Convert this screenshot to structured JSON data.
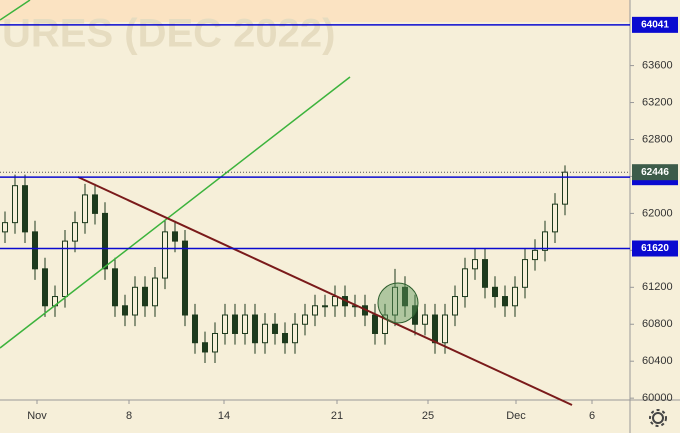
{
  "chart_data": {
    "type": "candlestick",
    "watermark": "URES (DEC 2022)",
    "color": "#1d3a1d",
    "open": [
      61800,
      61900,
      62300,
      61800,
      61400,
      61000,
      61100,
      61700,
      61900,
      62200,
      62000,
      61400,
      61000,
      60900,
      61200,
      61000,
      61300,
      61800,
      61700,
      60900,
      60600,
      60500,
      60700,
      60900,
      60700,
      60900,
      60600,
      60800,
      60700,
      60600,
      60800,
      60900,
      61000,
      61000,
      61100,
      61000,
      61000,
      60900,
      60700,
      60900,
      61200,
      61000,
      60800,
      60900,
      60600,
      60900,
      61100,
      61400,
      61500,
      61200,
      61100,
      61000,
      61200,
      61500,
      61600,
      61800,
      62100
    ],
    "high": [
      62020,
      62420,
      62420,
      61920,
      61520,
      61220,
      61820,
      62020,
      62320,
      62320,
      62120,
      61520,
      61120,
      61320,
      61320,
      61420,
      61920,
      61920,
      61820,
      61020,
      60720,
      60820,
      61020,
      61020,
      61020,
      61020,
      60920,
      60920,
      60820,
      60920,
      61020,
      61120,
      61120,
      61220,
      61220,
      61120,
      61120,
      61020,
      61020,
      61400,
      61320,
      61120,
      61020,
      61020,
      61020,
      61220,
      61520,
      61620,
      61620,
      61320,
      61220,
      61320,
      61620,
      61720,
      61920,
      62220,
      62520
    ],
    "low": [
      61680,
      61780,
      61680,
      61280,
      60880,
      60880,
      60980,
      61580,
      61780,
      61880,
      61280,
      60880,
      60780,
      60780,
      60880,
      60880,
      61180,
      61580,
      60780,
      60480,
      60380,
      60380,
      60580,
      60580,
      60580,
      60480,
      60480,
      60580,
      60480,
      60480,
      60680,
      60780,
      60880,
      60880,
      60880,
      60880,
      60780,
      60580,
      60580,
      60780,
      60880,
      60680,
      60680,
      60480,
      60480,
      60780,
      60980,
      61280,
      61080,
      60980,
      60880,
      60880,
      61080,
      61380,
      61480,
      61680,
      61980
    ],
    "close": [
      61900,
      62300,
      61800,
      61400,
      61000,
      61100,
      61700,
      61900,
      62200,
      62000,
      61400,
      61000,
      60900,
      61200,
      61000,
      61300,
      61800,
      61700,
      60900,
      60600,
      60500,
      60700,
      60900,
      60700,
      60900,
      60600,
      60800,
      60700,
      60600,
      60800,
      60900,
      61000,
      61000,
      61100,
      61000,
      61000,
      60900,
      60700,
      60900,
      61200,
      61000,
      60800,
      60900,
      60600,
      60900,
      61100,
      61400,
      61500,
      61200,
      61100,
      61000,
      61200,
      61500,
      61600,
      61800,
      62100,
      62446
    ],
    "levels": [
      64041,
      62392,
      61620
    ],
    "level_color": "#0a0ad0",
    "last_price_color": "#3d5c4a",
    "xlim": [
      -0.5,
      62.5
    ],
    "xticks": [
      {
        "value": 3.2,
        "label": "Nov"
      },
      {
        "value": 12.4,
        "label": "8"
      },
      {
        "value": 21.9,
        "label": "14"
      },
      {
        "value": 33.2,
        "label": "21"
      },
      {
        "value": 42.3,
        "label": "25"
      },
      {
        "value": 51.1,
        "label": "Dec"
      },
      {
        "value": 58.7,
        "label": "6"
      }
    ],
    "ylim": [
      59980,
      64310
    ],
    "yticks": [
      60000,
      60400,
      60800,
      61200,
      61600,
      62000,
      62400,
      62800,
      63200,
      63600
    ]
  }
}
